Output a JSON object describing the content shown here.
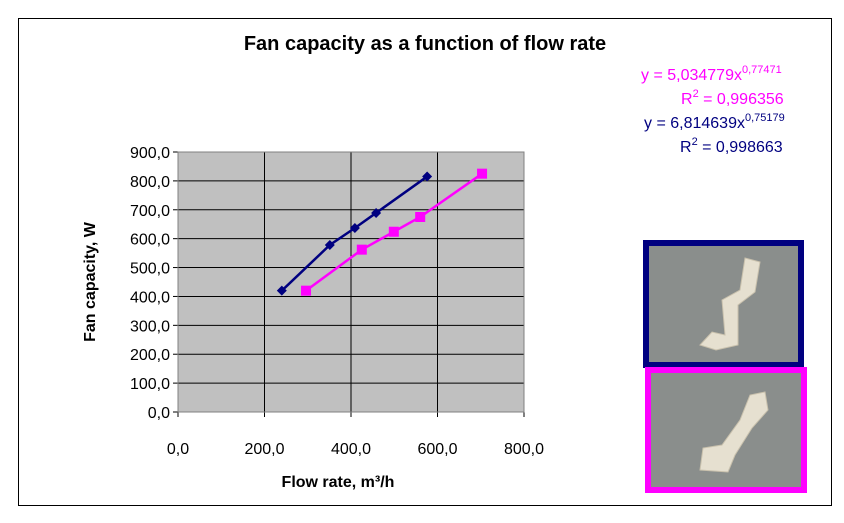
{
  "chart_data": {
    "type": "line",
    "title": "Fan capacity as a function of flow rate",
    "x_label": "Flow rate, m³/h",
    "y_label": "Fan capacity, W",
    "xlim": [
      0,
      800
    ],
    "xticks": [
      {
        "value": 0,
        "label": "0,0"
      },
      {
        "value": 200,
        "label": "200,0"
      },
      {
        "value": 400,
        "label": "400,0"
      },
      {
        "value": 600,
        "label": "600,0"
      },
      {
        "value": 800,
        "label": "800,0"
      }
    ],
    "ylim": [
      0,
      900
    ],
    "yticks": [
      {
        "value": 0,
        "label": "0,0"
      },
      {
        "value": 100,
        "label": "100,0"
      },
      {
        "value": 200,
        "label": "200,0"
      },
      {
        "value": 300,
        "label": "300,0"
      },
      {
        "value": 400,
        "label": "400,0"
      },
      {
        "value": 500,
        "label": "500,0"
      },
      {
        "value": 600,
        "label": "600,0"
      },
      {
        "value": 700,
        "label": "700,0"
      },
      {
        "value": 800,
        "label": "800,0"
      },
      {
        "value": 900,
        "label": "900,0"
      }
    ],
    "grid": true,
    "series": [
      {
        "color": "#000080",
        "marker": "diamond",
        "x": [
          240,
          351,
          409,
          458,
          576
        ],
        "values": [
          420,
          578,
          637,
          689,
          815
        ]
      },
      {
        "color": "#ff00ff",
        "marker": "square",
        "x": [
          296,
          425,
          499,
          560,
          703
        ],
        "values": [
          420,
          562,
          624,
          675,
          825
        ]
      }
    ],
    "annotations": [
      {
        "text": "y = 5,034779x",
        "superscript": "0,77471",
        "color": "#ff00ff"
      },
      {
        "text": "R",
        "superscript": "2",
        "after": " = 0,996356",
        "color": "#ff00ff"
      },
      {
        "text": "y = 6,814639x",
        "superscript": "0,75179",
        "color": "#000080"
      },
      {
        "text": "R",
        "superscript": "2",
        "after": " = 0,998663",
        "color": "#000080"
      }
    ]
  }
}
